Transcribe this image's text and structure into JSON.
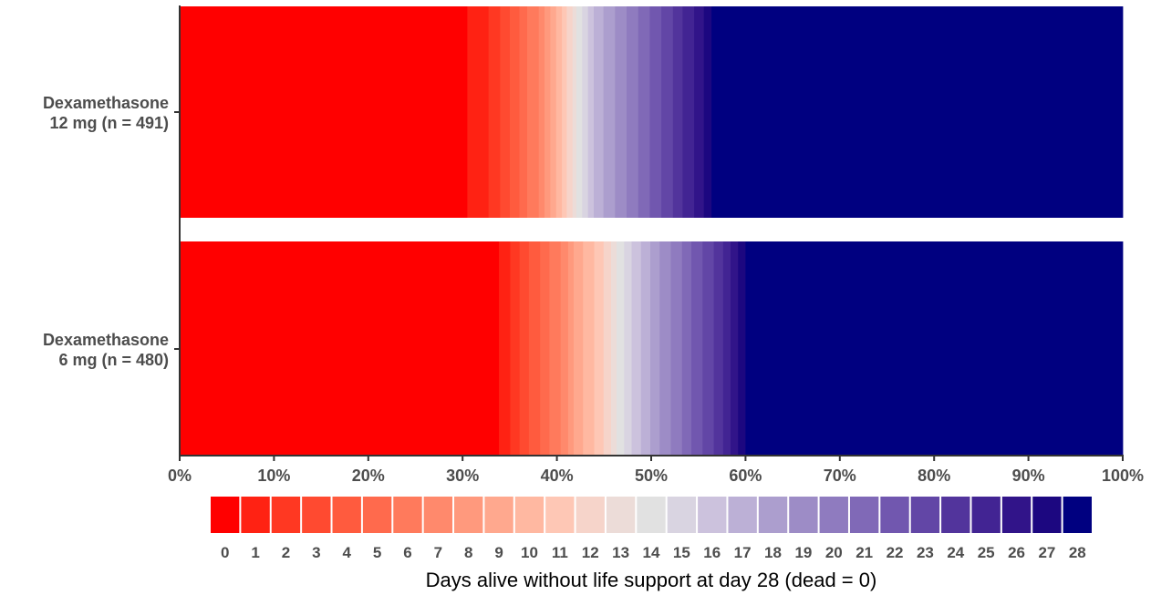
{
  "chart_data": {
    "type": "bar",
    "orientation": "horizontal",
    "stacked": true,
    "percent": true,
    "xlabel": "Days alive without life support at day 28 (dead = 0)",
    "xlim": [
      0,
      100
    ],
    "x_ticks": [
      "0%",
      "10%",
      "20%",
      "30%",
      "40%",
      "50%",
      "60%",
      "70%",
      "80%",
      "90%",
      "100%"
    ],
    "grid": false,
    "legend_position": "bottom",
    "categories": [
      "Dexamethasone\n12 mg (n = 491)",
      "Dexamethasone\n6 mg (n = 480)"
    ],
    "series_labels": [
      "0",
      "1",
      "2",
      "3",
      "4",
      "5",
      "6",
      "7",
      "8",
      "9",
      "10",
      "11",
      "12",
      "13",
      "14",
      "15",
      "16",
      "17",
      "18",
      "19",
      "20",
      "21",
      "22",
      "23",
      "24",
      "25",
      "26",
      "27",
      "28"
    ],
    "colors": [
      "#ff0000",
      "#ff2213",
      "#ff3822",
      "#ff4a30",
      "#ff5b3e",
      "#ff6a4d",
      "#ff7a5c",
      "#ff896c",
      "#ff997d",
      "#ffa88e",
      "#ffb8a1",
      "#fec7b5",
      "#f6d4ca",
      "#ecdcd8",
      "#e1e1e1",
      "#d9d4e1",
      "#ccc2dd",
      "#bcb0d6",
      "#ac9ece",
      "#9d8cc6",
      "#8f7bbf",
      "#8069b7",
      "#7157af",
      "#6246a6",
      "#52349c",
      "#422493",
      "#311489",
      "#1c0780",
      "#000080"
    ],
    "rows": [
      {
        "label": "Dexamethasone\n12 mg (n = 491)",
        "values": [
          29.8,
          2.2,
          1.2,
          1.0,
          1.0,
          0.8,
          1.2,
          0.6,
          0.6,
          0.6,
          0.6,
          0.5,
          0.6,
          0.4,
          0.6,
          0.6,
          0.6,
          1.0,
          1.2,
          1.2,
          1.2,
          1.2,
          1.2,
          1.2,
          1.0,
          1.2,
          1.0,
          0.8,
          42.6
        ]
      },
      {
        "label": "Dexamethasone\n6 mg (n = 480)",
        "values": [
          34.2,
          1.2,
          1.0,
          1.0,
          1.2,
          1.0,
          1.2,
          0.8,
          0.6,
          1.0,
          1.2,
          1.0,
          0.8,
          0.6,
          0.8,
          0.8,
          1.0,
          1.0,
          1.0,
          1.2,
          1.2,
          1.0,
          1.2,
          1.2,
          1.0,
          0.8,
          0.8,
          0.8,
          40.4
        ]
      }
    ]
  }
}
